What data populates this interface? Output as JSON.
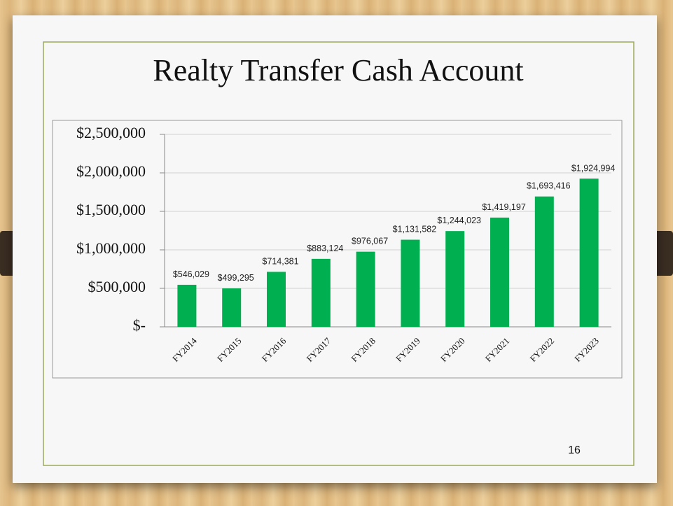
{
  "chart_data": {
    "type": "bar",
    "title": "Realty Transfer Cash Account",
    "categories": [
      "FY2014",
      "FY2015",
      "FY2016",
      "FY2017",
      "FY2018",
      "FY2019",
      "FY2020",
      "FY2021",
      "FY2022",
      "FY2023"
    ],
    "values": [
      546029,
      499295,
      714381,
      883124,
      976067,
      1131582,
      1244023,
      1419197,
      1693416,
      1924994
    ],
    "value_labels": [
      "$546,029",
      "$499,295",
      "$714,381",
      "$883,124",
      "$976,067",
      "$1,131,582",
      "$1,244,023",
      "$1,419,197",
      "$1,693,416",
      "$1,924,994"
    ],
    "color": "#00b050",
    "ylim": [
      0,
      2500000
    ],
    "yticks": [
      {
        "value": 0,
        "label": "$-"
      },
      {
        "value": 500000,
        "label": "$500,000"
      },
      {
        "value": 1000000,
        "label": "$1,000,000"
      },
      {
        "value": 1500000,
        "label": "$1,500,000"
      },
      {
        "value": 2000000,
        "label": "$2,000,000"
      },
      {
        "value": 2500000,
        "label": "$2,500,000"
      }
    ],
    "grid": true
  },
  "page_number": "16"
}
